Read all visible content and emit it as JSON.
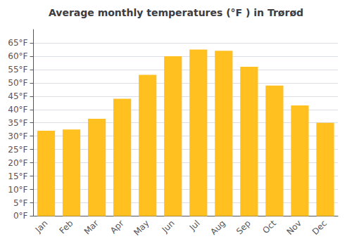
{
  "chart_data": {
    "type": "bar",
    "title": "Average monthly temperatures (°F ) in Trørød",
    "categories": [
      "Jan",
      "Feb",
      "Mar",
      "Apr",
      "May",
      "Jun",
      "Jul",
      "Aug",
      "Sep",
      "Oct",
      "Nov",
      "Dec"
    ],
    "values": [
      32,
      32.5,
      36.5,
      44,
      53,
      60,
      62.5,
      62,
      56,
      49,
      41.5,
      35
    ],
    "color": "#FFC020",
    "ylim": [
      0,
      70
    ],
    "yticks": [
      {
        "value": 0,
        "label": "0°F"
      },
      {
        "value": 5,
        "label": "5°F"
      },
      {
        "value": 10,
        "label": "10°F"
      },
      {
        "value": 15,
        "label": "15°F"
      },
      {
        "value": 20,
        "label": "20°F"
      },
      {
        "value": 25,
        "label": "25°F"
      },
      {
        "value": 30,
        "label": "30°F"
      },
      {
        "value": 35,
        "label": "35°F"
      },
      {
        "value": 40,
        "label": "40°F"
      },
      {
        "value": 45,
        "label": "45°F"
      },
      {
        "value": 50,
        "label": "50°F"
      },
      {
        "value": 55,
        "label": "55°F"
      },
      {
        "value": 60,
        "label": "60°F"
      },
      {
        "value": 65,
        "label": "65°F"
      }
    ],
    "grid": true
  }
}
